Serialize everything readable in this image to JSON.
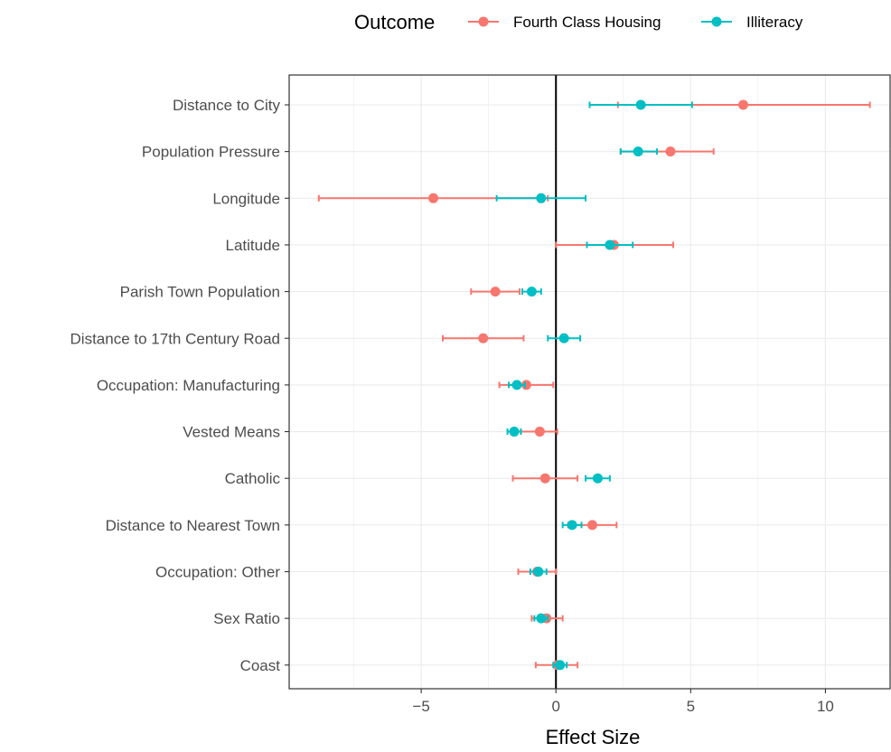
{
  "chart_data": {
    "type": "scatter",
    "subtype": "coefficient-plot-with-error-bars",
    "xlabel": "Effect Size",
    "ylabel": "",
    "xlim": [
      -9.9,
      12.4
    ],
    "x_ticks": [
      -5,
      0,
      5,
      10
    ],
    "x_tick_labels": [
      "−5",
      "0",
      "5",
      "10"
    ],
    "grid": true,
    "reference_line_x": 0,
    "legend": {
      "title": "Outcome",
      "position": "top"
    },
    "categories": [
      "Distance to City",
      "Population Pressure",
      "Longitude",
      "Latitude",
      "Parish Town Population",
      "Distance to 17th Century Road",
      "Occupation: Manufacturing",
      "Vested Means",
      "Catholic",
      "Distance to Nearest Town",
      "Occupation: Other",
      "Sex Ratio",
      "Coast"
    ],
    "series": [
      {
        "name": "Fourth Class Housing",
        "color": "#F8766D",
        "estimate": [
          6.95,
          4.25,
          -4.55,
          2.15,
          -2.25,
          -2.7,
          -1.1,
          -0.6,
          -0.4,
          1.35,
          -0.7,
          -0.35,
          0.05
        ],
        "lower": [
          2.3,
          2.4,
          -8.8,
          0.0,
          -3.15,
          -4.2,
          -2.1,
          -1.3,
          -1.6,
          0.45,
          -1.4,
          -0.9,
          -0.75
        ],
        "upper": [
          11.65,
          5.85,
          -0.3,
          4.35,
          -1.35,
          -1.2,
          -0.1,
          0.05,
          0.8,
          2.25,
          0.0,
          0.25,
          0.8
        ]
      },
      {
        "name": "Illiteracy",
        "color": "#00BFC4",
        "estimate": [
          3.15,
          3.05,
          -0.55,
          2.0,
          -0.9,
          0.3,
          -1.45,
          -1.55,
          1.55,
          0.6,
          -0.65,
          -0.55,
          0.15
        ],
        "lower": [
          1.25,
          2.4,
          -2.2,
          1.15,
          -1.25,
          -0.3,
          -1.75,
          -1.8,
          1.1,
          0.25,
          -0.95,
          -0.8,
          -0.1
        ],
        "upper": [
          5.05,
          3.75,
          1.1,
          2.85,
          -0.55,
          0.9,
          -1.15,
          -1.3,
          2.0,
          0.95,
          -0.35,
          -0.3,
          0.4
        ]
      }
    ]
  }
}
